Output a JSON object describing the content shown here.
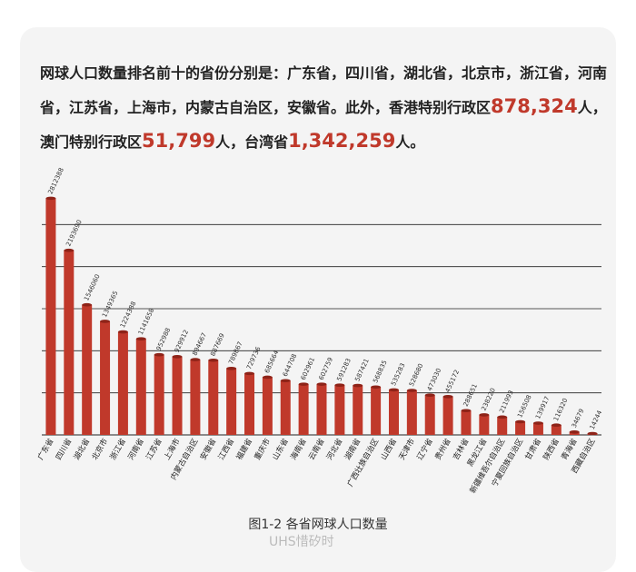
{
  "intro": {
    "lead": "网球人口数量排名前十的省份分别是：",
    "top10_text": "广东省，四川省，湖北省，北京市，浙江省，河南省，江苏省，上海市，内蒙古自治区，安徽省。",
    "besides": "此外，香港特别行政区",
    "hk_value": "878,324",
    "unit1": "人，",
    "macau_label": "澳门特别行政区",
    "macau_value": "51,799",
    "unit2": "人，",
    "taiwan_label": "台湾省",
    "taiwan_value": "1,342,259",
    "unit3": "人。"
  },
  "caption": "图1-2 各省网球人口数量",
  "watermark": "UHS惜矽时",
  "colors": {
    "bar": "#c0392b",
    "bar_dark": "#8e2318",
    "highlight": "#c0392b"
  },
  "chart_data": {
    "type": "bar",
    "title": "各省网球人口数量",
    "categories": [
      "广东省",
      "四川省",
      "湖北省",
      "北京市",
      "浙江省",
      "河南省",
      "江苏省",
      "上海市",
      "内蒙古自治区",
      "安徽省",
      "江西省",
      "福建省",
      "重庆市",
      "山东省",
      "海南省",
      "云南省",
      "河北省",
      "湖南省",
      "广西壮族自治区",
      "山西省",
      "天津市",
      "辽宁省",
      "贵州省",
      "吉林省",
      "黑龙江省",
      "新疆维吾尔自治区",
      "宁夏回族自治区",
      "甘肃省",
      "陕西省",
      "青海省",
      "西藏自治区"
    ],
    "values": [
      2812388,
      2193690,
      1546060,
      1349365,
      1224388,
      1141658,
      952988,
      929912,
      894667,
      887669,
      789867,
      729736,
      685664,
      644708,
      602961,
      602759,
      591283,
      587421,
      568835,
      535283,
      528680,
      473030,
      455172,
      288651,
      238220,
      211993,
      156508,
      139917,
      116320,
      34679,
      14244
    ],
    "ylim": [
      0,
      3000000
    ],
    "gridlines": [
      500000,
      1000000,
      1500000,
      2000000,
      2500000
    ],
    "grid": true,
    "xlabel": "",
    "ylabel": ""
  }
}
